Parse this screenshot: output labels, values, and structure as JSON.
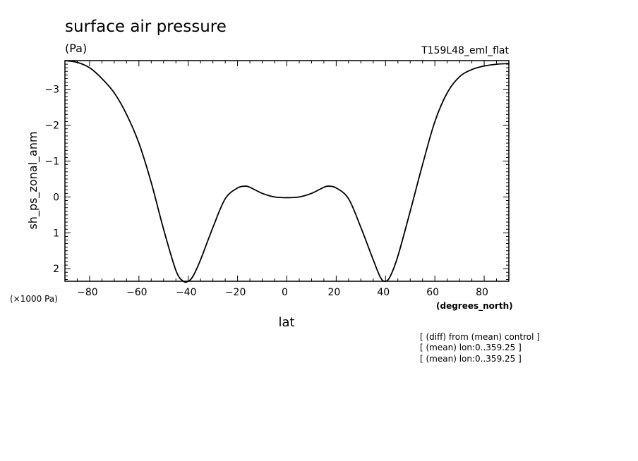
{
  "chart_data": {
    "type": "line",
    "title": "surface air pressure",
    "units": "(Pa)",
    "experiment": "T159L48_eml_flat",
    "xlabel": "lat",
    "xunits": "(degrees_north)",
    "ylabel": "sh_ps_zonal_anm",
    "yscale_label": "(×1000 Pa)",
    "xlim": [
      -90,
      90
    ],
    "ylim": [
      2.35,
      -3.8
    ],
    "y_inverted": true,
    "grid": false,
    "xticks": [
      -80,
      -60,
      -40,
      -20,
      0,
      20,
      40,
      60,
      80
    ],
    "yticks": [
      -3,
      -2,
      -1,
      0,
      1,
      2
    ],
    "notes": [
      "[ (diff) from (mean) control ]",
      "[ (mean) lon:0..359.25 ]",
      "[ (mean) lon:0..359.25 ]"
    ],
    "series": [
      {
        "x": [
          -90,
          -85,
          -80,
          -75,
          -70,
          -65,
          -60,
          -55,
          -50,
          -45,
          -42,
          -40,
          -38,
          -35,
          -30,
          -25,
          -20,
          -17,
          -15,
          -10,
          -5,
          0,
          5,
          10,
          15,
          17,
          20,
          25,
          30,
          35,
          38,
          40,
          42,
          45,
          50,
          55,
          60,
          65,
          70,
          75,
          80,
          85,
          90
        ],
        "y": [
          -3.8,
          -3.75,
          -3.6,
          -3.3,
          -2.9,
          -2.3,
          -1.5,
          -0.4,
          0.9,
          2.05,
          2.35,
          2.35,
          2.2,
          1.75,
          0.85,
          0.05,
          -0.25,
          -0.3,
          -0.27,
          -0.1,
          0.0,
          0.02,
          0.0,
          -0.1,
          -0.27,
          -0.3,
          -0.25,
          0.05,
          0.85,
          1.75,
          2.25,
          2.35,
          2.2,
          1.65,
          0.4,
          -0.9,
          -2.1,
          -2.9,
          -3.35,
          -3.55,
          -3.65,
          -3.7,
          -3.72
        ]
      }
    ]
  }
}
